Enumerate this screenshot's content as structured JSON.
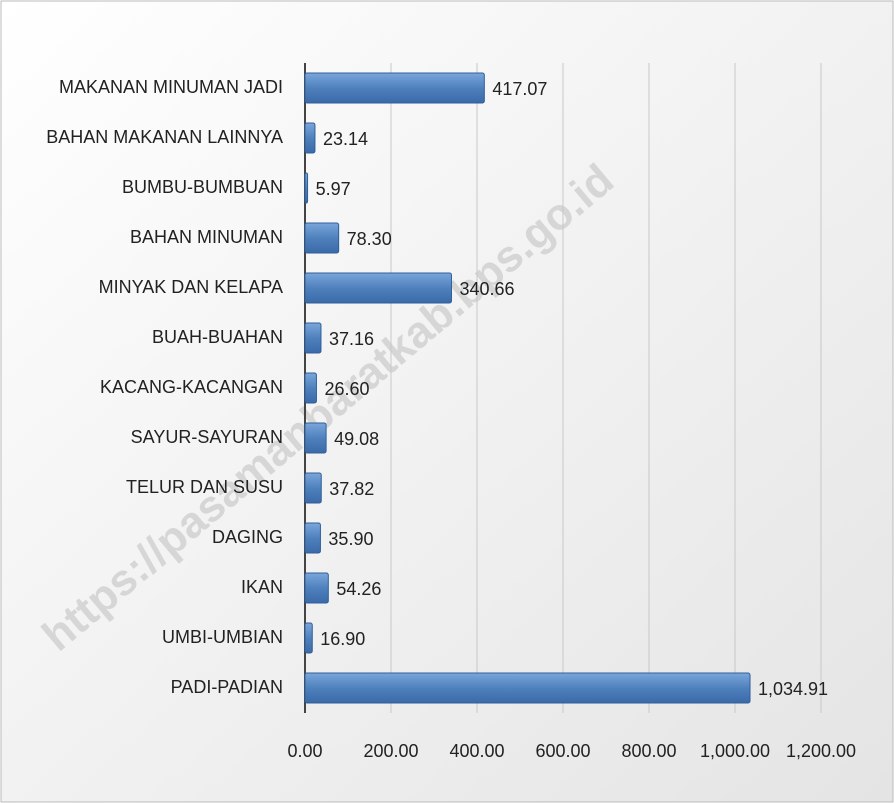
{
  "chart_data": {
    "type": "bar",
    "orientation": "horizontal",
    "watermark": "https://pasamanbaratkab.bps.go.id",
    "categories": [
      "MAKANAN MINUMAN JADI",
      "BAHAN MAKANAN LAINNYA",
      "BUMBU-BUMBUAN",
      "BAHAN MINUMAN",
      "MINYAK DAN KELAPA",
      "BUAH-BUAHAN",
      "KACANG-KACANGAN",
      "SAYUR-SAYURAN",
      "TELUR DAN SUSU",
      "DAGING",
      "IKAN",
      "UMBI-UMBIAN",
      "PADI-PADIAN"
    ],
    "values": [
      417.07,
      23.14,
      5.97,
      78.3,
      340.66,
      37.16,
      26.6,
      49.08,
      37.82,
      35.9,
      54.26,
      16.9,
      1034.91
    ],
    "value_labels": [
      "417.07",
      "23.14",
      "5.97",
      "78.30",
      "340.66",
      "37.16",
      "26.60",
      "49.08",
      "37.82",
      "35.90",
      "54.26",
      "16.90",
      "1,034.91"
    ],
    "color": "#4f81bd",
    "xlim": [
      0,
      1200
    ],
    "xticks": [
      {
        "value": 0,
        "label": "0.00"
      },
      {
        "value": 200,
        "label": "200.00"
      },
      {
        "value": 400,
        "label": "400.00"
      },
      {
        "value": 600,
        "label": "600.00"
      },
      {
        "value": 800,
        "label": "800.00"
      },
      {
        "value": 1000,
        "label": "1,000.00"
      },
      {
        "value": 1200,
        "label": "1,200.00"
      }
    ],
    "grid": true
  }
}
